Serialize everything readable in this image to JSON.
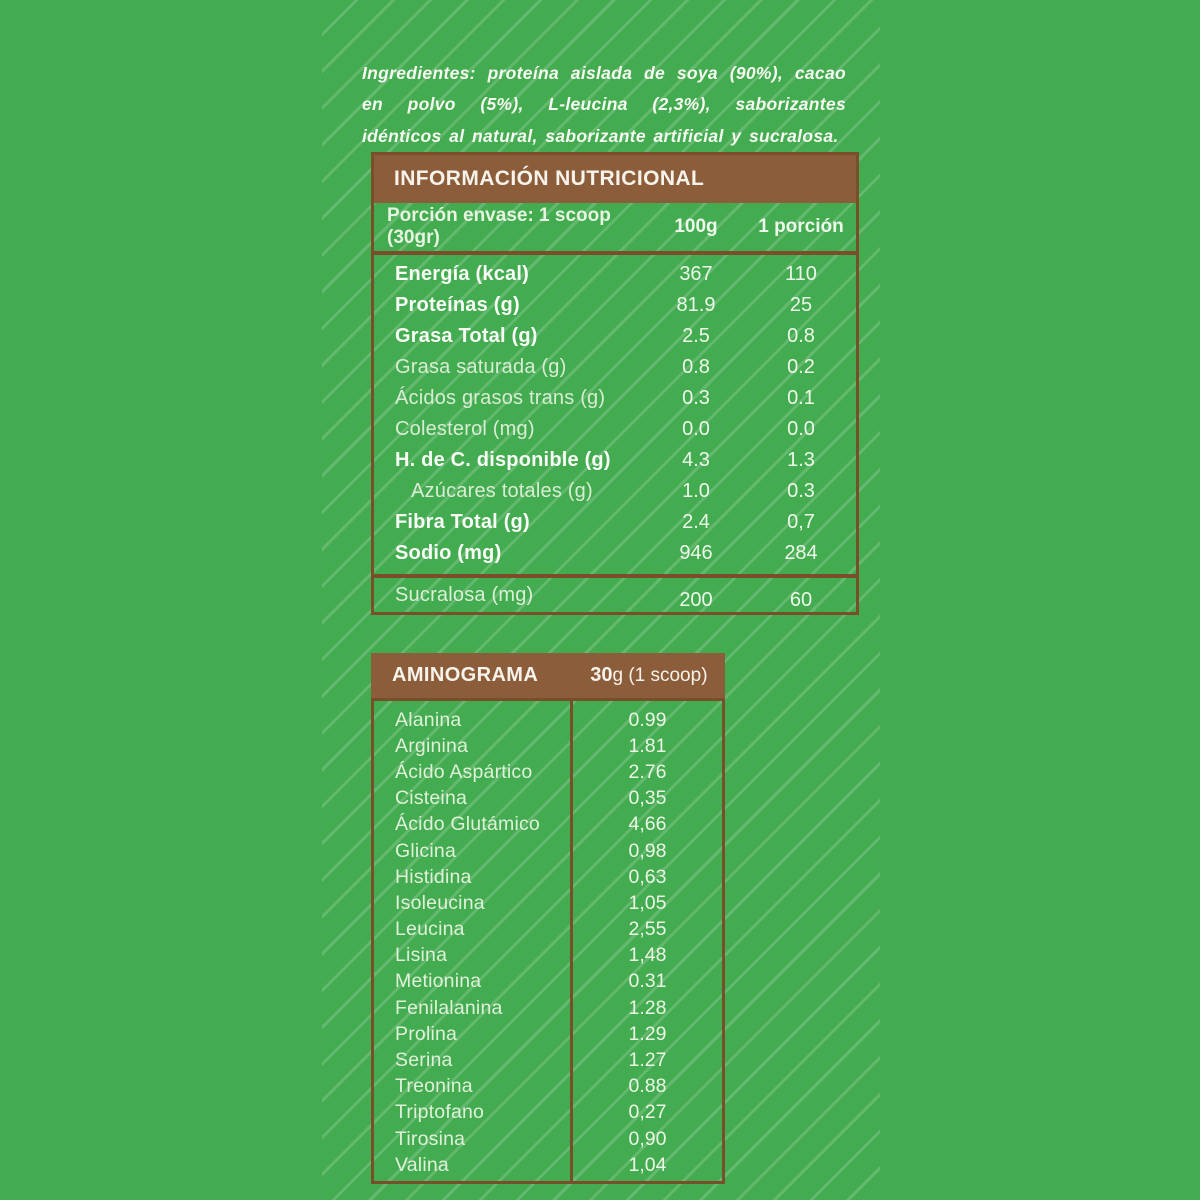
{
  "palette": {
    "background_green": "#43ab50",
    "stripe_green": "#5fba68",
    "panel_brown": "#8c5d3b",
    "border_brown": "#7a4e2a",
    "text_bright": "#f9fcf6",
    "text_soft": "#d9edd4"
  },
  "ingredients": {
    "text": "Ingredientes: proteína aislada de soya (90%), cacao en polvo (5%), L-leucina (2,3%), saborizantes idénticos al natural, saborizante artificial y sucralosa."
  },
  "nutrition": {
    "title": "INFORMACIÓN NUTRICIONAL",
    "serving_label": "Porción envase: 1 scoop (30gr)",
    "col_100g": "100g",
    "col_portion": "1 porción",
    "rows": [
      {
        "label": "Energía (kcal)",
        "per100": "367",
        "portion": "110"
      },
      {
        "label": "Proteínas (g)",
        "per100": "81.9",
        "portion": "25"
      },
      {
        "label": "Grasa Total (g)",
        "per100": "2.5",
        "portion": "0.8"
      },
      {
        "label": "Grasa saturada (g)",
        "per100": "0.8",
        "portion": "0.2"
      },
      {
        "label": "Ácidos grasos trans (g)",
        "per100": "0.3",
        "portion": "0.1"
      },
      {
        "label": "Colesterol (mg)",
        "per100": "0.0",
        "portion": "0.0"
      },
      {
        "label": "H. de C. disponible (g)",
        "per100": "4.3",
        "portion": "1.3"
      },
      {
        "label": "Azúcares totales (g)",
        "per100": "1.0",
        "portion": "0.3"
      },
      {
        "label": "Fibra Total (g)",
        "per100": "2.4",
        "portion": "0,7"
      },
      {
        "label": "Sodio (mg)",
        "per100": "946",
        "portion": "284"
      }
    ],
    "footer": {
      "label": "Sucralosa (mg)",
      "per100": "200",
      "portion": "60"
    }
  },
  "aminogram": {
    "title": "AMINOGRAMA",
    "subtitle_bold": "30",
    "subtitle_rest": "g (1 scoop)",
    "rows": [
      {
        "name": "Alanina",
        "value": "0.99"
      },
      {
        "name": "Arginina",
        "value": "1.81"
      },
      {
        "name": "Ácido Aspártico",
        "value": "2.76"
      },
      {
        "name": "Cisteina",
        "value": "0,35"
      },
      {
        "name": "Ácido Glutámico",
        "value": "4,66"
      },
      {
        "name": "Glicina",
        "value": "0,98"
      },
      {
        "name": "Histidina",
        "value": "0,63"
      },
      {
        "name": "Isoleucina",
        "value": "1,05"
      },
      {
        "name": "Leucina",
        "value": "2,55"
      },
      {
        "name": "Lisina",
        "value": "1,48"
      },
      {
        "name": "Metionina",
        "value": "0.31"
      },
      {
        "name": "Fenilalanina",
        "value": "1.28"
      },
      {
        "name": "Prolina",
        "value": "1.29"
      },
      {
        "name": "Serina",
        "value": "1.27"
      },
      {
        "name": "Treonina",
        "value": "0.88"
      },
      {
        "name": "Triptofano",
        "value": "0,27"
      },
      {
        "name": "Tirosina",
        "value": "0,90"
      },
      {
        "name": "Valina",
        "value": "1,04"
      }
    ]
  }
}
